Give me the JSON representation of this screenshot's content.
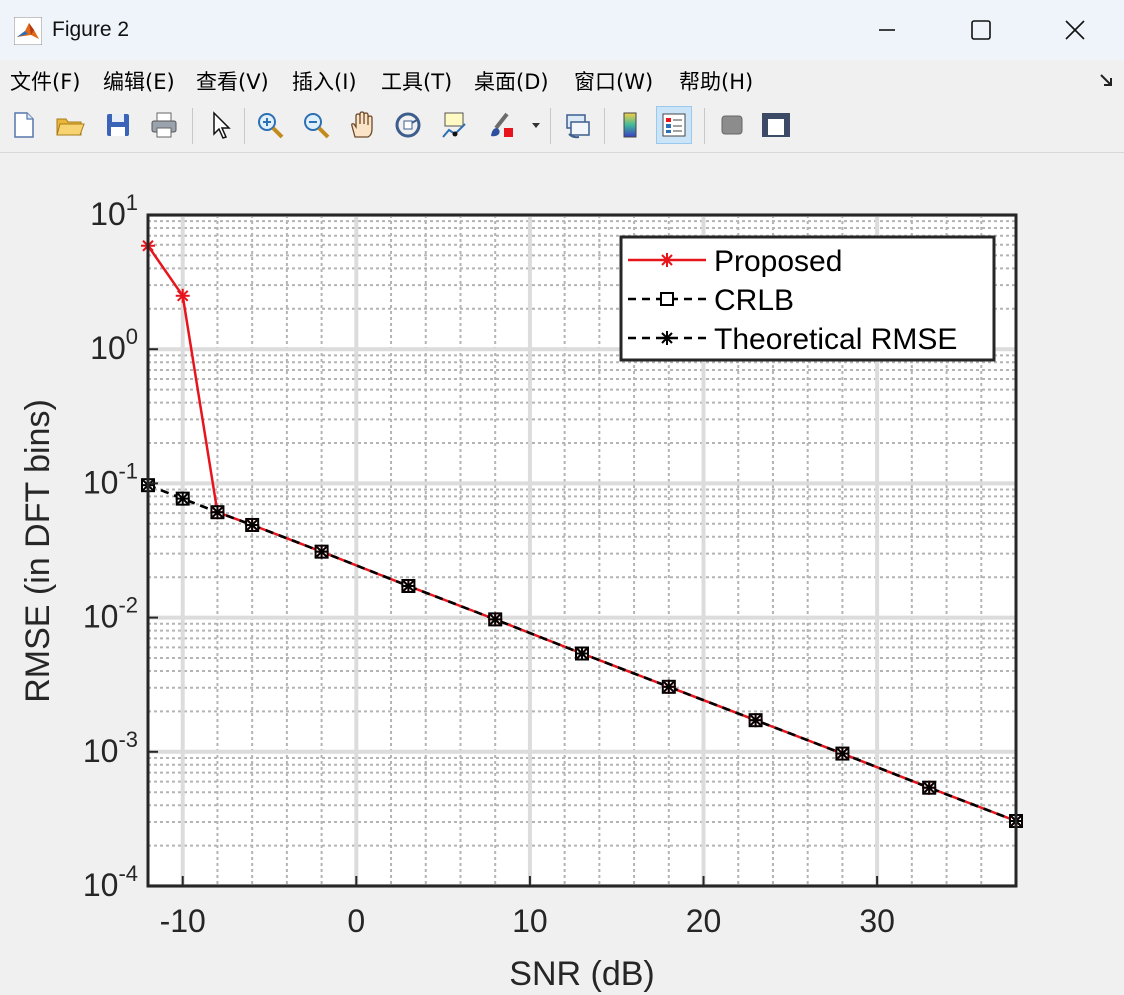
{
  "window": {
    "title": "Figure 2"
  },
  "menu": {
    "items": [
      "文件(F)",
      "编辑(E)",
      "查看(V)",
      "插入(I)",
      "工具(T)",
      "桌面(D)",
      "窗口(W)",
      "帮助(H)"
    ]
  },
  "toolbar": {
    "buttons": [
      "new-figure",
      "open-file",
      "save",
      "print",
      "edit-plot",
      "zoom-in",
      "zoom-out",
      "pan",
      "rotate-3d",
      "data-cursor",
      "brush",
      "link-plot",
      "insert-colorbar",
      "insert-legend",
      "hide-plot-tools",
      "show-plot-tools"
    ]
  },
  "chart_data": {
    "type": "line",
    "xlabel": "SNR (dB)",
    "ylabel": "RMSE (in DFT bins)",
    "xlim": [
      -12,
      38
    ],
    "ylim": [
      0.0001,
      10
    ],
    "yscale": "log",
    "xticks": [
      -10,
      0,
      10,
      20,
      30
    ],
    "yticks": [
      {
        "base": "10",
        "exp": "1",
        "value": 10
      },
      {
        "base": "10",
        "exp": "0",
        "value": 1
      },
      {
        "base": "10",
        "exp": "-1",
        "value": 0.1
      },
      {
        "base": "10",
        "exp": "-2",
        "value": 0.01
      },
      {
        "base": "10",
        "exp": "-3",
        "value": 0.001
      },
      {
        "base": "10",
        "exp": "-4",
        "value": 0.0001
      }
    ],
    "grid": true,
    "legend_position": "top-right",
    "series": [
      {
        "name": "Proposed",
        "color": "#e8141c",
        "line": "solid",
        "marker": "asterisk",
        "x": [
          -12,
          -10,
          -8,
          -6,
          -2,
          3,
          8,
          13,
          18,
          23,
          28,
          33,
          38
        ],
        "y": [
          5.9,
          2.5,
          0.061,
          0.049,
          0.031,
          0.0172,
          0.0097,
          0.0054,
          0.00305,
          0.00172,
          0.00097,
          0.00054,
          0.000305
        ]
      },
      {
        "name": "CRLB",
        "color": "#000000",
        "line": "dashed",
        "marker": "square",
        "x": [
          -12,
          -10,
          -8,
          -6,
          -2,
          3,
          8,
          13,
          18,
          23,
          28,
          33,
          38
        ],
        "y": [
          0.097,
          0.077,
          0.061,
          0.049,
          0.031,
          0.0172,
          0.0097,
          0.0054,
          0.00305,
          0.00172,
          0.00097,
          0.00054,
          0.000305
        ]
      },
      {
        "name": "Theoretical RMSE",
        "color": "#000000",
        "line": "dashed",
        "marker": "asterisk",
        "x": [
          -12,
          -10,
          -8,
          -6,
          -2,
          3,
          8,
          13,
          18,
          23,
          28,
          33,
          38
        ],
        "y": [
          0.097,
          0.077,
          0.061,
          0.049,
          0.031,
          0.0172,
          0.0097,
          0.0054,
          0.00305,
          0.00172,
          0.00097,
          0.00054,
          0.000305
        ]
      }
    ]
  }
}
